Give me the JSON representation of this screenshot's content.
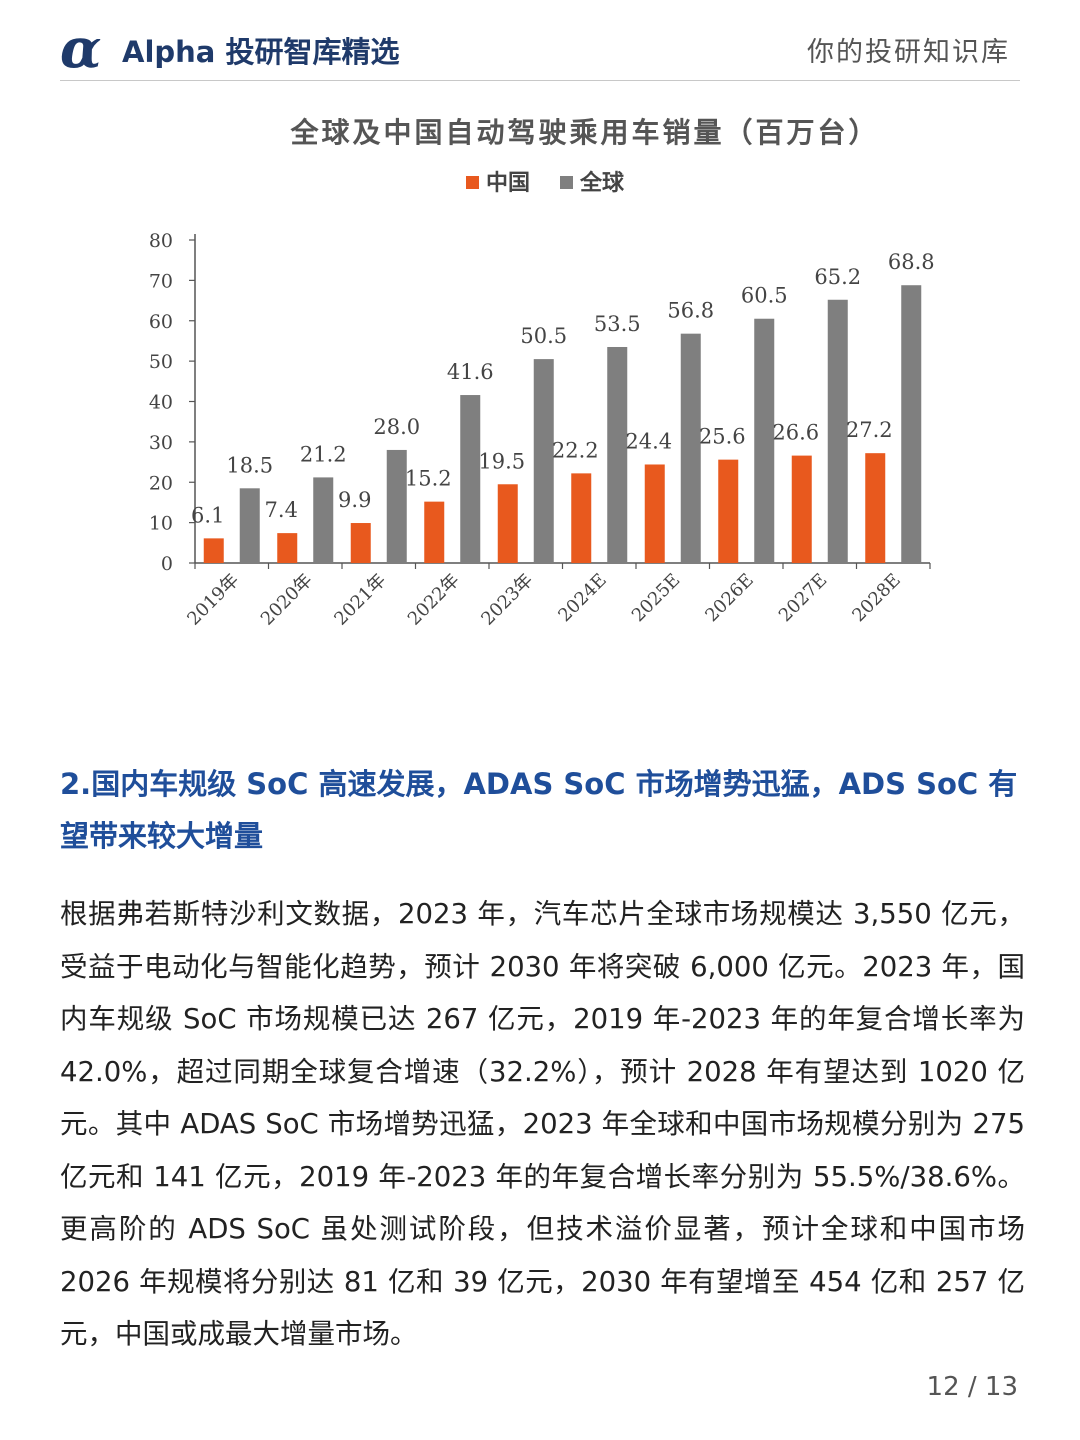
{
  "header": {
    "logo_mark": "α",
    "logo_text": "Alpha 投研智库精选",
    "slogan": "你的投研知识库"
  },
  "chart_data": {
    "type": "bar",
    "title": "全球及中国自动驾驶乘用车销量（百万台）",
    "categories": [
      "2019年",
      "2020年",
      "2021年",
      "2022年",
      "2023年",
      "2024E",
      "2025E",
      "2026E",
      "2027E",
      "2028E"
    ],
    "series": [
      {
        "name": "中国",
        "color": "#e8591e",
        "values": [
          6.1,
          7.4,
          9.9,
          15.2,
          19.5,
          22.2,
          24.4,
          25.6,
          26.6,
          27.2
        ]
      },
      {
        "name": "全球",
        "color": "#7f7f7f",
        "values": [
          18.5,
          21.2,
          28.0,
          41.6,
          50.5,
          53.5,
          56.8,
          60.5,
          65.2,
          68.8
        ]
      }
    ],
    "y_ticks": [
      "0",
      "10",
      "20",
      "30",
      "40",
      "50",
      "60",
      "70",
      "80"
    ],
    "ylim": [
      0,
      80
    ],
    "legend_position": "top-center",
    "grid": false
  },
  "section": {
    "title": "2.国内车规级 SoC 高速发展，ADAS SoC 市场增势迅猛，ADS SoC 有望带来较大增量",
    "body": "根据弗若斯特沙利文数据，2023 年，汽车芯片全球市场规模达 3,550 亿元，受益于电动化与智能化趋势，预计 2030 年将突破 6,000 亿元。2023 年，国内车规级 SoC 市场规模已达 267 亿元，2019 年-2023 年的年复合增长率为 42.0%，超过同期全球复合增速（32.2%），预计 2028 年有望达到 1020 亿元。其中 ADAS SoC 市场增势迅猛，2023 年全球和中国市场规模分别为 275 亿元和 141 亿元，2019 年-2023 年的年复合增长率分别为 55.5%/38.6%。更高阶的 ADS SoC 虽处测试阶段，但技术溢价显著，预计全球和中国市场 2026 年规模将分别达 81 亿和 39 亿元，2030 年有望增至 454 亿和 257 亿元，中国或成最大增量市场。"
  },
  "footer": {
    "page_number": "12 / 13"
  }
}
